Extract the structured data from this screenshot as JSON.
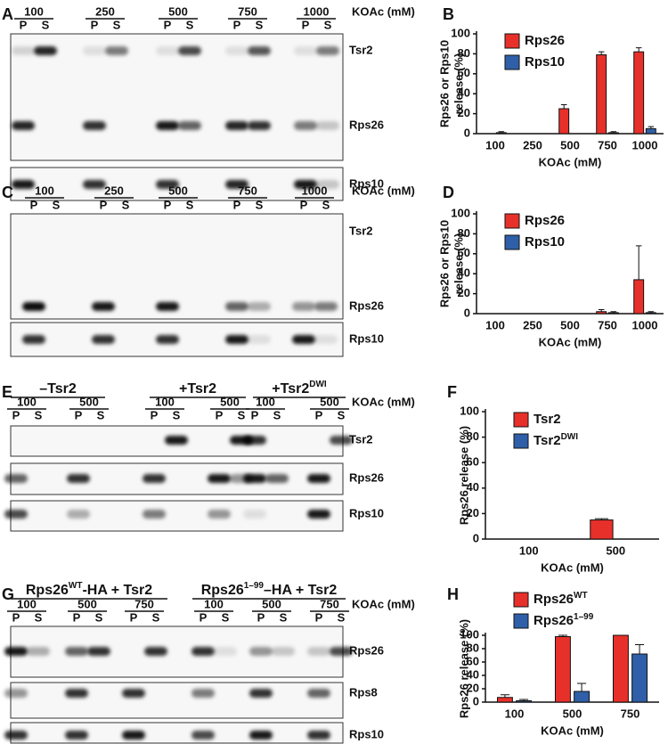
{
  "gel_panels": [
    {
      "letter": "A",
      "lanes": [
        "100",
        "250",
        "500",
        "750",
        "1000"
      ],
      "fractions": [
        "P",
        "S"
      ],
      "unit": "KOAc (mM)",
      "bands": [
        "Tsr2",
        "Rps26",
        "Rps10"
      ]
    },
    {
      "letter": "C",
      "lanes": [
        "100",
        "250",
        "500",
        "750",
        "1000"
      ],
      "fractions": [
        "P",
        "S"
      ],
      "unit": "KOAc (mM)",
      "bands": [
        "Tsr2",
        "Rps26",
        "Rps10"
      ]
    },
    {
      "letter": "E",
      "groups": [
        {
          "text": "–Tsr2"
        },
        {
          "text": "+Tsr2"
        },
        {
          "text": "+Tsr2",
          "sup": "DWI"
        }
      ],
      "lanes": [
        "100",
        "500",
        "100",
        "500",
        "100",
        "500"
      ],
      "fractions": [
        "P",
        "S"
      ],
      "unit": "KOAc (mM)",
      "bands": [
        "Tsr2",
        "Rps26",
        "Rps10"
      ]
    },
    {
      "letter": "G",
      "groups": [
        {
          "text": "Rps26",
          "sup": "WT",
          "rest": "-HA + Tsr2"
        },
        {
          "text": "Rps26",
          "sup": "1–99",
          "rest": "–HA + Tsr2"
        }
      ],
      "lanes": [
        "100",
        "500",
        "750",
        "100",
        "500",
        "750"
      ],
      "fractions": [
        "P",
        "S"
      ],
      "unit": "KOAc (mM)",
      "bands": [
        "Rps26",
        "Rps8",
        "Rps10"
      ]
    }
  ],
  "chart_data": [
    {
      "type": "bar",
      "panel": "B",
      "y_label": [
        "Rps26 or Rps10",
        "release (%)"
      ],
      "x_label": "KOAc (mM)",
      "categories": [
        "100",
        "250",
        "500",
        "750",
        "1000"
      ],
      "series": [
        {
          "name": "Rps26",
          "color": "#e8302a",
          "values": [
            0,
            0,
            25,
            79,
            82
          ],
          "errors": [
            0,
            0,
            4,
            3,
            4
          ]
        },
        {
          "name": "Rps10",
          "color": "#2f5fa8",
          "values": [
            1,
            0,
            0,
            1,
            5
          ],
          "errors": [
            1,
            0,
            0,
            1,
            2
          ]
        }
      ],
      "ylim": [
        0,
        100
      ],
      "yticks": [
        0,
        20,
        40,
        60,
        80,
        100
      ]
    },
    {
      "type": "bar",
      "panel": "D",
      "y_label": [
        "Rps26 or Rps10",
        "release (%)"
      ],
      "x_label": "KOAc (mM)",
      "categories": [
        "100",
        "250",
        "500",
        "750",
        "1000"
      ],
      "series": [
        {
          "name": "Rps26",
          "color": "#e8302a",
          "values": [
            0,
            0,
            0,
            2,
            34
          ],
          "errors": [
            0,
            0,
            0,
            2,
            34
          ]
        },
        {
          "name": "Rps10",
          "color": "#2f5fa8",
          "values": [
            0,
            0,
            0,
            1,
            1
          ],
          "errors": [
            0,
            0,
            0,
            1,
            1
          ]
        }
      ],
      "ylim": [
        0,
        100
      ],
      "yticks": [
        0,
        20,
        40,
        60,
        80,
        100
      ]
    },
    {
      "type": "bar",
      "panel": "F",
      "y_label": [
        "Rps26 release (%)"
      ],
      "x_label": "KOAc (mM)",
      "categories": [
        "100",
        "500"
      ],
      "series": [
        {
          "name": "Tsr2",
          "color": "#e8302a",
          "values": [
            0,
            15
          ],
          "errors": [
            0,
            1
          ]
        },
        {
          "name": "Tsr2",
          "name_sup": "DWI",
          "color": "#2f5fa8",
          "values": [
            0,
            0
          ],
          "errors": [
            0,
            0
          ]
        }
      ],
      "ylim": [
        0,
        100
      ],
      "yticks": [
        0,
        20,
        40,
        60,
        80,
        100
      ]
    },
    {
      "type": "bar",
      "panel": "H",
      "y_label": [
        "Rps26 release (%)"
      ],
      "x_label": "KOAc (mM)",
      "categories": [
        "100",
        "500",
        "750"
      ],
      "series": [
        {
          "name": "Rps26",
          "name_sup": "WT",
          "color": "#e8302a",
          "values": [
            7,
            98,
            100
          ],
          "errors": [
            4,
            2,
            0
          ]
        },
        {
          "name": "Rps26",
          "name_sup": "1–99",
          "color": "#2f5fa8",
          "values": [
            2,
            16,
            72
          ],
          "errors": [
            2,
            12,
            14
          ]
        }
      ],
      "ylim": [
        0,
        100
      ],
      "yticks": [
        0,
        20,
        40,
        60,
        80,
        100
      ]
    }
  ]
}
